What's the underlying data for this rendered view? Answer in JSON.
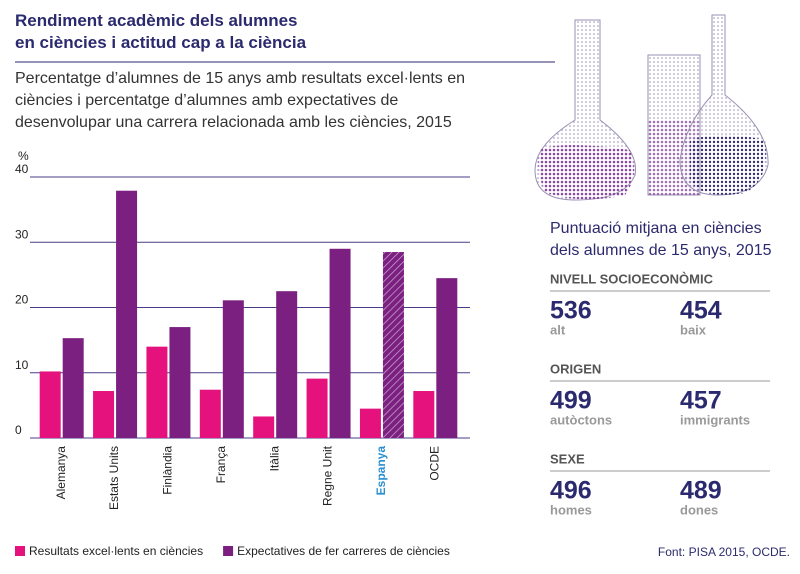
{
  "chart_data": {
    "type": "bar",
    "title": "Rendiment acadèmic dels alumnes en ciències i actitud cap a la ciència",
    "subtitle": "Percentatge d’alumnes de 15 anys amb resultats excel·lents en ciències i percentatge d’alumnes amb expectatives de desenvolupar una carrera relacionada amb les ciències, 2015",
    "y_label": "%",
    "categories": [
      "Alemanya",
      "Estats Units",
      "Finlàndia",
      "França",
      "Itàlia",
      "Regne Unit",
      "Espanya",
      "OCDE"
    ],
    "highlight": "Espanya",
    "series": [
      {
        "name": "Resultats excel·lents en ciències",
        "color": "#e5127d",
        "values": [
          10.2,
          7.2,
          14,
          7.4,
          3.3,
          9.1,
          4.5,
          7.2
        ]
      },
      {
        "name": "Expectatives de fer carreres de ciències",
        "color": "#7b1f80",
        "values": [
          15.3,
          37.9,
          17,
          21.1,
          22.5,
          29,
          28.5,
          24.5
        ]
      }
    ],
    "ylim": [
      0,
      40
    ],
    "yticks": [
      0,
      10,
      20,
      30,
      40
    ],
    "grid": true,
    "legend": "bottom"
  },
  "source": "Font: PISA 2015, OCDE.",
  "panel": {
    "title": "Puntuació mitjana en ciències dels alumnes de 15 anys, 2015",
    "sections": [
      {
        "heading": "NIVELL SOCIOECONÒMIC",
        "items": [
          {
            "value": 536,
            "label": "alt"
          },
          {
            "value": 454,
            "label": "baix"
          }
        ]
      },
      {
        "heading": "ORIGEN",
        "items": [
          {
            "value": 499,
            "label": "autòctons"
          },
          {
            "value": 457,
            "label": "immigrants"
          }
        ]
      },
      {
        "heading": "SEXE",
        "items": [
          {
            "value": 496,
            "label": "homes"
          },
          {
            "value": 489,
            "label": "dones"
          }
        ]
      }
    ]
  }
}
